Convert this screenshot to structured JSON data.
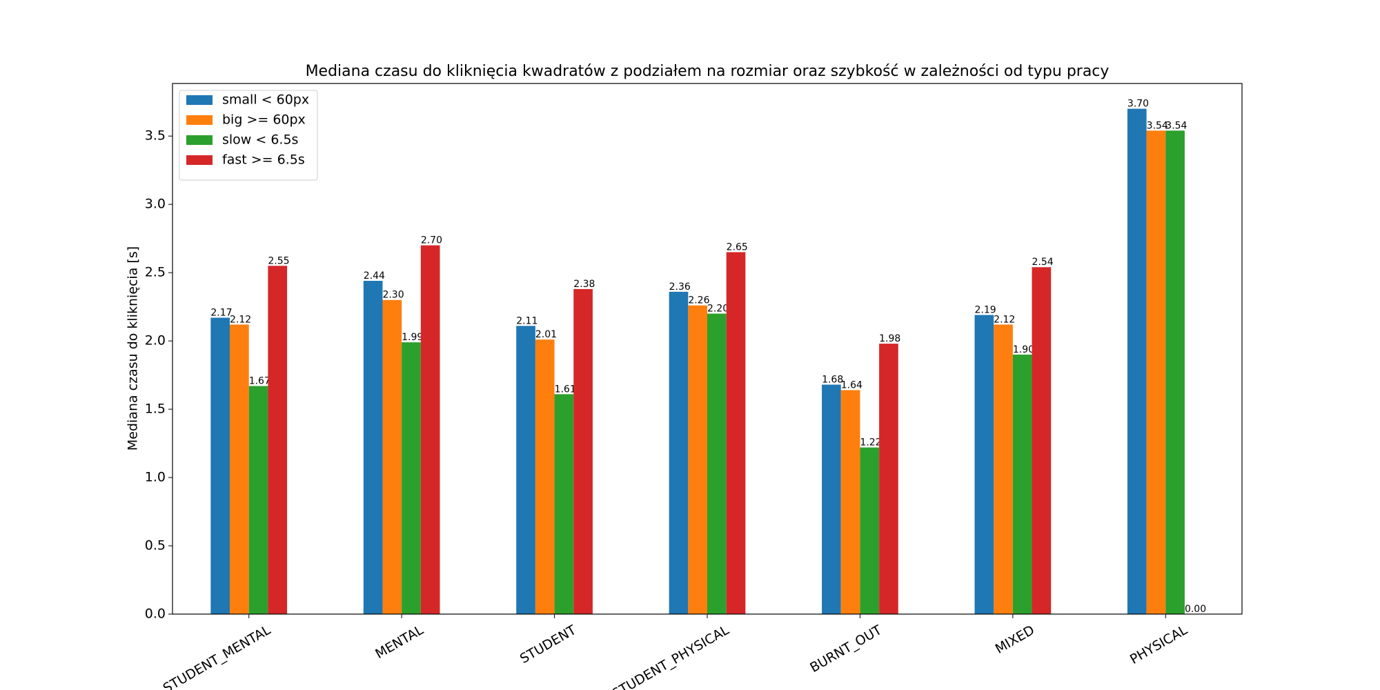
{
  "chart_data": {
    "type": "bar",
    "title": "Mediana czasu do kliknięcia kwadratów z podziałem na rozmiar oraz szybkość w zależności od typu pracy",
    "y_label": "Mediana czasu do kliknięcia [s]",
    "categories": [
      "_STUDENT_MENTAL",
      "MENTAL",
      "STUDENT",
      "STUDENT_PHYSICAL",
      "BURNT_OUT",
      "MIXED",
      "PHYSICAL"
    ],
    "series": [
      {
        "name": "small < 60px",
        "color": "#1f77b4",
        "values": [
          2.17,
          2.44,
          2.11,
          2.36,
          1.68,
          2.19,
          3.7
        ],
        "value_labels": [
          "2.17",
          "2.44",
          "2.11",
          "2.36",
          "1.68",
          "2.19",
          "3.70"
        ]
      },
      {
        "name": "big >= 60px",
        "color": "#ff7f0e",
        "values": [
          2.12,
          2.3,
          2.01,
          2.26,
          1.64,
          2.12,
          3.54
        ],
        "value_labels": [
          "2.12",
          "2.30",
          "2.01",
          "2.26",
          "1.64",
          "2.12",
          "3.54"
        ]
      },
      {
        "name": "slow < 6.5s",
        "color": "#2ca02c",
        "values": [
          1.67,
          1.99,
          1.61,
          2.2,
          1.22,
          1.9,
          3.54
        ],
        "value_labels": [
          "1.67",
          "1.99",
          "1.61",
          "2.20",
          "1.22",
          "1.90",
          "3.54"
        ]
      },
      {
        "name": "fast >= 6.5s",
        "color": "#d62728",
        "values": [
          2.55,
          2.7,
          2.38,
          2.65,
          1.98,
          2.54,
          0.0
        ],
        "value_labels": [
          "2.55",
          "2.70",
          "2.38",
          "2.65",
          "1.98",
          "2.54",
          "0.00"
        ]
      }
    ],
    "ylim": [
      0,
      3.885
    ],
    "yticks": [
      {
        "value": 0,
        "label": "0.0"
      },
      {
        "value": 0.5,
        "label": "0.5"
      },
      {
        "value": 1,
        "label": "1.0"
      },
      {
        "value": 1.5,
        "label": "1.5"
      },
      {
        "value": 2,
        "label": "2.0"
      },
      {
        "value": 2.5,
        "label": "2.5"
      },
      {
        "value": 3,
        "label": "3.0"
      },
      {
        "value": 3.5,
        "label": "3.5"
      }
    ],
    "legend": "upper-left"
  }
}
